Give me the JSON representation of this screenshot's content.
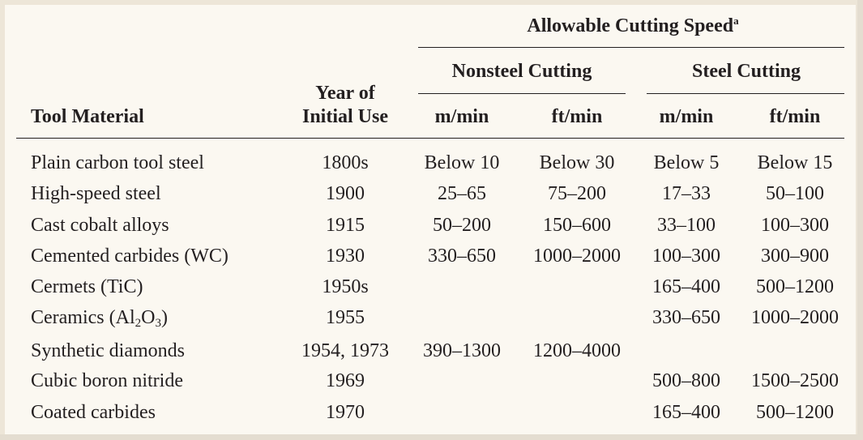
{
  "table": {
    "group_header": "Allowable Cutting Speed",
    "group_footnote_mark": "a",
    "subgroups": {
      "nonsteel": "Nonsteel Cutting",
      "steel": "Steel Cutting"
    },
    "columns": {
      "tool_material": "Tool Material",
      "year_line1": "Year of",
      "year_line2": "Initial Use",
      "m_min": "m/min",
      "ft_min": "ft/min"
    },
    "rows": [
      {
        "material": "Plain carbon tool steel",
        "year": "1800s",
        "ns_m": "Below 10",
        "ns_ft": "Below 30",
        "s_m": "Below 5",
        "s_ft": "Below 15"
      },
      {
        "material": "High-speed steel",
        "year": "1900",
        "ns_m": "25–65",
        "ns_ft": "75–200",
        "s_m": "17–33",
        "s_ft": "50–100"
      },
      {
        "material": "Cast cobalt alloys",
        "year": "1915",
        "ns_m": "50–200",
        "ns_ft": "150–600",
        "s_m": "33–100",
        "s_ft": "100–300"
      },
      {
        "material": "Cemented carbides (WC)",
        "year": "1930",
        "ns_m": "330–650",
        "ns_ft": "1000–2000",
        "s_m": "100–300",
        "s_ft": "300–900"
      },
      {
        "material": "Cermets (TiC)",
        "year": "1950s",
        "ns_m": "",
        "ns_ft": "",
        "s_m": "165–400",
        "s_ft": "500–1200"
      },
      {
        "material_prefix": "Ceramics (Al",
        "material_sub1": "2",
        "material_mid": "O",
        "material_sub2": "3",
        "material_suffix": ")",
        "year": "1955",
        "ns_m": "",
        "ns_ft": "",
        "s_m": "330–650",
        "s_ft": "1000–2000"
      },
      {
        "material": "Synthetic diamonds",
        "year": "1954, 1973",
        "ns_m": "390–1300",
        "ns_ft": "1200–4000",
        "s_m": "",
        "s_ft": ""
      },
      {
        "material": "Cubic boron nitride",
        "year": "1969",
        "ns_m": "",
        "ns_ft": "",
        "s_m": "500–800",
        "s_ft": "1500–2500"
      },
      {
        "material": "Coated carbides",
        "year": "1970",
        "ns_m": "",
        "ns_ft": "",
        "s_m": "165–400",
        "s_ft": "500–1200"
      }
    ]
  }
}
